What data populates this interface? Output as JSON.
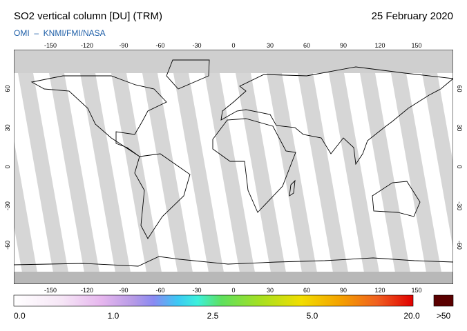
{
  "header": {
    "title": "SO2 vertical column [DU] (TRM)",
    "date": "25 February 2020",
    "credit": "OMI  –  KNMI/FMI/NASA"
  },
  "map": {
    "lon_ticks": [
      -150,
      -120,
      -90,
      -60,
      -30,
      0,
      30,
      60,
      90,
      120,
      150
    ],
    "lat_ticks": [
      60,
      30,
      0,
      -30,
      -60
    ]
  },
  "colorbar": {
    "labels": [
      "0.0",
      "1.0",
      "2.5",
      "5.0",
      "20.0"
    ],
    "overflow": ">50"
  }
}
